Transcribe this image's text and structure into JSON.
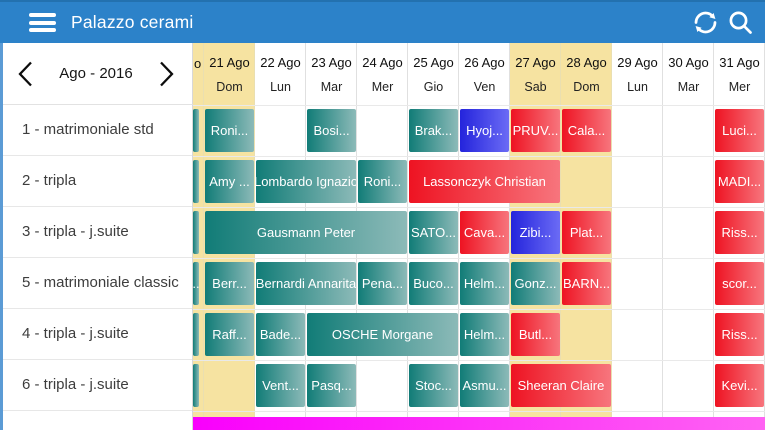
{
  "topbar": {
    "title": "Palazzo cerami"
  },
  "month_nav": {
    "label": "Ago - 2016"
  },
  "calendar": {
    "partial_day": {
      "header_fragment": "o",
      "weekend": true
    },
    "days": [
      {
        "date": "21 Ago",
        "dow": "Dom",
        "weekend": true
      },
      {
        "date": "22 Ago",
        "dow": "Lun",
        "weekend": false
      },
      {
        "date": "23 Ago",
        "dow": "Mar",
        "weekend": false
      },
      {
        "date": "24 Ago",
        "dow": "Mer",
        "weekend": false
      },
      {
        "date": "25 Ago",
        "dow": "Gio",
        "weekend": false
      },
      {
        "date": "26 Ago",
        "dow": "Ven",
        "weekend": false
      },
      {
        "date": "27 Ago",
        "dow": "Sab",
        "weekend": true
      },
      {
        "date": "28 Ago",
        "dow": "Dom",
        "weekend": true
      },
      {
        "date": "29 Ago",
        "dow": "Lun",
        "weekend": false
      },
      {
        "date": "30 Ago",
        "dow": "Mar",
        "weekend": false
      },
      {
        "date": "31 Ago",
        "dow": "Mer",
        "weekend": false
      }
    ],
    "rooms": [
      {
        "name": "1 - matrimoniale std",
        "bookings": [
          {
            "day": 20,
            "span": 1,
            "label": "",
            "type": "teal"
          },
          {
            "day": 21,
            "span": 1,
            "label": "Roni...",
            "type": "teal"
          },
          {
            "day": 23,
            "span": 1,
            "label": "Bosi...",
            "type": "teal"
          },
          {
            "day": 25,
            "span": 1,
            "label": "Brak...",
            "type": "teal"
          },
          {
            "day": 26,
            "span": 1,
            "label": "Hyoj...",
            "type": "blue"
          },
          {
            "day": 27,
            "span": 1,
            "label": "PRUV...",
            "type": "red"
          },
          {
            "day": 28,
            "span": 1,
            "label": "Cala...",
            "type": "red"
          },
          {
            "day": 31,
            "span": 1,
            "label": "Luci...",
            "type": "red"
          }
        ]
      },
      {
        "name": "2 - tripla",
        "bookings": [
          {
            "day": 20,
            "span": 1,
            "label": "",
            "type": "teal"
          },
          {
            "day": 21,
            "span": 1,
            "label": "Amy ...",
            "type": "teal"
          },
          {
            "day": 22,
            "span": 2,
            "label": "Lombardo Ignazio",
            "type": "teal"
          },
          {
            "day": 24,
            "span": 1,
            "label": "Roni...",
            "type": "teal"
          },
          {
            "day": 25,
            "span": 3,
            "label": "Lassonczyk Christian",
            "type": "red"
          },
          {
            "day": 31,
            "span": 1,
            "label": "MADI...",
            "type": "red"
          }
        ]
      },
      {
        "name": "3 - tripla - j.suite",
        "bookings": [
          {
            "day": 20,
            "span": 1,
            "label": "",
            "type": "teal"
          },
          {
            "day": 21,
            "span": 4,
            "label": "Gausmann Peter",
            "type": "teal"
          },
          {
            "day": 25,
            "span": 1,
            "label": "SATO...",
            "type": "teal"
          },
          {
            "day": 26,
            "span": 1,
            "label": "Cava...",
            "type": "red"
          },
          {
            "day": 27,
            "span": 1,
            "label": "Zibi...",
            "type": "blue"
          },
          {
            "day": 28,
            "span": 1,
            "label": "Plat...",
            "type": "red"
          },
          {
            "day": 31,
            "span": 1,
            "label": "Riss...",
            "type": "red"
          }
        ]
      },
      {
        "name": "5 - matrimoniale classic",
        "bookings": [
          {
            "day": 20,
            "span": 1,
            "label": "..",
            "type": "teal"
          },
          {
            "day": 21,
            "span": 1,
            "label": "Berr...",
            "type": "teal"
          },
          {
            "day": 22,
            "span": 2,
            "label": "Bernardi Annarita",
            "type": "teal"
          },
          {
            "day": 24,
            "span": 1,
            "label": "Pena...",
            "type": "teal"
          },
          {
            "day": 25,
            "span": 1,
            "label": "Buco...",
            "type": "teal"
          },
          {
            "day": 26,
            "span": 1,
            "label": "Helm...",
            "type": "teal"
          },
          {
            "day": 27,
            "span": 1,
            "label": "Gonz...",
            "type": "teal"
          },
          {
            "day": 28,
            "span": 1,
            "label": "BARN...",
            "type": "red"
          },
          {
            "day": 31,
            "span": 1,
            "label": "scor...",
            "type": "red"
          }
        ]
      },
      {
        "name": "4 - tripla - j.suite",
        "bookings": [
          {
            "day": 20,
            "span": 1,
            "label": "",
            "type": "teal"
          },
          {
            "day": 21,
            "span": 1,
            "label": "Raff...",
            "type": "teal"
          },
          {
            "day": 22,
            "span": 1,
            "label": "Bade...",
            "type": "teal"
          },
          {
            "day": 23,
            "span": 3,
            "label": "OSCHE Morgane",
            "type": "teal"
          },
          {
            "day": 26,
            "span": 1,
            "label": "Helm...",
            "type": "teal"
          },
          {
            "day": 27,
            "span": 1,
            "label": "Butl...",
            "type": "red"
          },
          {
            "day": 31,
            "span": 1,
            "label": "Riss...",
            "type": "red"
          }
        ]
      },
      {
        "name": "6 - tripla - j.suite",
        "bookings": [
          {
            "day": 20,
            "span": 1,
            "label": "",
            "type": "teal"
          },
          {
            "day": 22,
            "span": 1,
            "label": "Vent...",
            "type": "teal"
          },
          {
            "day": 23,
            "span": 1,
            "label": "Pasq...",
            "type": "teal"
          },
          {
            "day": 25,
            "span": 1,
            "label": "Stoc...",
            "type": "teal"
          },
          {
            "day": 26,
            "span": 1,
            "label": "Asmu...",
            "type": "teal"
          },
          {
            "day": 27,
            "span": 2,
            "label": "Sheeran Claire",
            "type": "red"
          },
          {
            "day": 31,
            "span": 1,
            "label": "Kevi...",
            "type": "red"
          }
        ]
      }
    ]
  },
  "colors": {
    "topbar": "#2c82c9",
    "accent_strip": "#5b9bd5",
    "weekend": "#f6e3a1",
    "teal_start": "#117c77",
    "teal_end": "#8cbab8",
    "red_start": "#ee1322",
    "red_end": "#f7757d",
    "blue_start": "#2424dc",
    "blue_end": "#6b6bf5",
    "magenta_start": "#f900fc",
    "magenta_end": "#ff63f3",
    "grid_line": "#e9e9e9"
  }
}
